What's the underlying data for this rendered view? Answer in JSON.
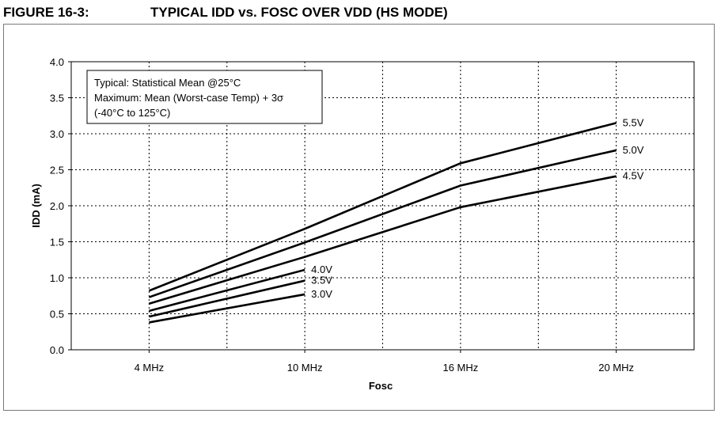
{
  "figure": {
    "label": "FIGURE 16-3:",
    "title": "TYPICAL IDD vs. FOSC OVER VDD (HS MODE)"
  },
  "chart_data": {
    "type": "line",
    "title": "TYPICAL IDD vs. FOSC OVER VDD (HS MODE)",
    "xlabel": "Fosc",
    "ylabel": "IDD (mA)",
    "categories": [
      "4 MHz",
      "10 MHz",
      "16 MHz",
      "20 MHz"
    ],
    "yticks": [
      "0.0",
      "0.5",
      "1.0",
      "1.5",
      "2.0",
      "2.5",
      "3.0",
      "3.5",
      "4.0"
    ],
    "ylim": [
      0,
      4
    ],
    "grid": true,
    "legend": "series labels at line ends",
    "annotation": [
      "Typical: Statistical Mean @25°C",
      "Maximum: Mean (Worst-case Temp) + 3σ",
      "(-40°C to 125°C)"
    ],
    "series": [
      {
        "name": "5.5V",
        "values": [
          0.82,
          1.68,
          2.59,
          3.15
        ]
      },
      {
        "name": "5.0V",
        "values": [
          0.73,
          1.49,
          2.28,
          2.77
        ]
      },
      {
        "name": "4.5V",
        "values": [
          0.64,
          1.29,
          1.98,
          2.41
        ]
      },
      {
        "name": "4.0V",
        "values": [
          0.54,
          1.11,
          null,
          null
        ]
      },
      {
        "name": "3.5V",
        "values": [
          0.46,
          0.96,
          null,
          null
        ]
      },
      {
        "name": "3.0V",
        "values": [
          0.38,
          0.77,
          null,
          null
        ]
      }
    ]
  }
}
